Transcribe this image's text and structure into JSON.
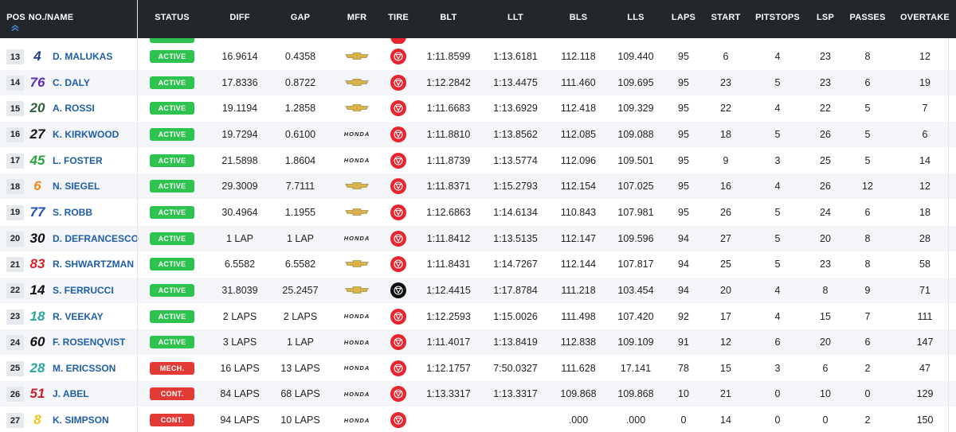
{
  "columns": {
    "pos": "POS",
    "no_name": "NO./NAME",
    "status": "STATUS",
    "diff": "DIFF",
    "gap": "GAP",
    "mfr": "MFR",
    "tire": "TIRE",
    "blt": "BLT",
    "llt": "LLT",
    "bls": "BLS",
    "lls": "LLS",
    "laps": "LAPS",
    "start": "START",
    "pitstops": "PITSTOPS",
    "lsp": "LSP",
    "passes": "PASSES",
    "overtake": "OVERTAKE"
  },
  "sort_icon": "chevron-double-up-icon",
  "colors": {
    "header_bg": "#22272c",
    "active": "#2ec24f",
    "inactive": "#e23b35",
    "tire_red": "#e8252f",
    "tire_black": "#111111",
    "driver": "#1f5ea8"
  },
  "rows": [
    {
      "pos": "13",
      "num": "4",
      "num_color": "#1f3f8c",
      "driver": "D. MALUKAS",
      "status": "ACTIVE",
      "state": "active",
      "diff": "16.9614",
      "gap": "0.4358",
      "mfr": "chevrolet",
      "tire": "red",
      "blt": "1:11.8599",
      "llt": "1:13.6181",
      "bls": "112.118",
      "lls": "109.440",
      "laps": "95",
      "start": "6",
      "pitstops": "4",
      "lsp": "23",
      "passes": "8",
      "overtake": "12"
    },
    {
      "pos": "14",
      "num": "76",
      "num_color": "#5b2bb5",
      "driver": "C. DALY",
      "status": "ACTIVE",
      "state": "active",
      "diff": "17.8336",
      "gap": "0.8722",
      "mfr": "chevrolet",
      "tire": "red",
      "blt": "1:12.2842",
      "llt": "1:13.4475",
      "bls": "111.460",
      "lls": "109.695",
      "laps": "95",
      "start": "23",
      "pitstops": "5",
      "lsp": "23",
      "passes": "6",
      "overtake": "19"
    },
    {
      "pos": "15",
      "num": "20",
      "num_color": "#2f5f3a",
      "driver": "A. ROSSI",
      "status": "ACTIVE",
      "state": "active",
      "diff": "19.1194",
      "gap": "1.2858",
      "mfr": "chevrolet",
      "tire": "red",
      "blt": "1:11.6683",
      "llt": "1:13.6929",
      "bls": "112.418",
      "lls": "109.329",
      "laps": "95",
      "start": "22",
      "pitstops": "4",
      "lsp": "22",
      "passes": "5",
      "overtake": "7"
    },
    {
      "pos": "16",
      "num": "27",
      "num_color": "#111111",
      "driver": "K. KIRKWOOD",
      "status": "ACTIVE",
      "state": "active",
      "diff": "19.7294",
      "gap": "0.6100",
      "mfr": "honda",
      "tire": "red",
      "blt": "1:11.8810",
      "llt": "1:13.8562",
      "bls": "112.085",
      "lls": "109.088",
      "laps": "95",
      "start": "18",
      "pitstops": "5",
      "lsp": "26",
      "passes": "5",
      "overtake": "6"
    },
    {
      "pos": "17",
      "num": "45",
      "num_color": "#2aa53c",
      "driver": "L. FOSTER",
      "status": "ACTIVE",
      "state": "active",
      "diff": "21.5898",
      "gap": "1.8604",
      "mfr": "honda",
      "tire": "red",
      "blt": "1:11.8739",
      "llt": "1:13.5774",
      "bls": "112.096",
      "lls": "109.501",
      "laps": "95",
      "start": "9",
      "pitstops": "3",
      "lsp": "25",
      "passes": "5",
      "overtake": "14"
    },
    {
      "pos": "18",
      "num": "6",
      "num_color": "#f08a1c",
      "driver": "N. SIEGEL",
      "status": "ACTIVE",
      "state": "active",
      "diff": "29.3009",
      "gap": "7.7111",
      "mfr": "chevrolet",
      "tire": "red",
      "blt": "1:11.8371",
      "llt": "1:15.2793",
      "bls": "112.154",
      "lls": "107.025",
      "laps": "95",
      "start": "16",
      "pitstops": "4",
      "lsp": "26",
      "passes": "12",
      "overtake": "12"
    },
    {
      "pos": "19",
      "num": "77",
      "num_color": "#1f4fb5",
      "driver": "S. ROBB",
      "status": "ACTIVE",
      "state": "active",
      "diff": "30.4964",
      "gap": "1.1955",
      "mfr": "chevrolet",
      "tire": "red",
      "blt": "1:12.6863",
      "llt": "1:14.6134",
      "bls": "110.843",
      "lls": "107.981",
      "laps": "95",
      "start": "26",
      "pitstops": "5",
      "lsp": "24",
      "passes": "6",
      "overtake": "18"
    },
    {
      "pos": "20",
      "num": "30",
      "num_color": "#111111",
      "driver": "D. DEFRANCESCO",
      "status": "ACTIVE",
      "state": "active",
      "diff": "1 LAP",
      "gap": "1 LAP",
      "mfr": "honda",
      "tire": "red",
      "blt": "1:11.8412",
      "llt": "1:13.5135",
      "bls": "112.147",
      "lls": "109.596",
      "laps": "94",
      "start": "27",
      "pitstops": "5",
      "lsp": "20",
      "passes": "8",
      "overtake": "28"
    },
    {
      "pos": "21",
      "num": "83",
      "num_color": "#d8232a",
      "driver": "R. SHWARTZMAN",
      "status": "ACTIVE",
      "state": "active",
      "diff": "6.5582",
      "gap": "6.5582",
      "mfr": "chevrolet",
      "tire": "red",
      "blt": "1:11.8431",
      "llt": "1:14.7267",
      "bls": "112.144",
      "lls": "107.817",
      "laps": "94",
      "start": "25",
      "pitstops": "5",
      "lsp": "23",
      "passes": "8",
      "overtake": "58"
    },
    {
      "pos": "22",
      "num": "14",
      "num_color": "#111111",
      "driver": "S. FERRUCCI",
      "status": "ACTIVE",
      "state": "active",
      "diff": "31.8039",
      "gap": "25.2457",
      "mfr": "chevrolet",
      "tire": "black",
      "blt": "1:12.4415",
      "llt": "1:17.8784",
      "bls": "111.218",
      "lls": "103.454",
      "laps": "94",
      "start": "20",
      "pitstops": "4",
      "lsp": "8",
      "passes": "9",
      "overtake": "71"
    },
    {
      "pos": "23",
      "num": "18",
      "num_color": "#2aa8a0",
      "driver": "R. VEEKAY",
      "status": "ACTIVE",
      "state": "active",
      "diff": "2 LAPS",
      "gap": "2 LAPS",
      "mfr": "honda",
      "tire": "red",
      "blt": "1:12.2593",
      "llt": "1:15.0026",
      "bls": "111.498",
      "lls": "107.420",
      "laps": "92",
      "start": "17",
      "pitstops": "4",
      "lsp": "15",
      "passes": "7",
      "overtake": "111"
    },
    {
      "pos": "24",
      "num": "60",
      "num_color": "#111111",
      "driver": "F. ROSENQVIST",
      "status": "ACTIVE",
      "state": "active",
      "diff": "3 LAPS",
      "gap": "1 LAP",
      "mfr": "honda",
      "tire": "red",
      "blt": "1:11.4017",
      "llt": "1:13.8419",
      "bls": "112.838",
      "lls": "109.109",
      "laps": "91",
      "start": "12",
      "pitstops": "6",
      "lsp": "20",
      "passes": "6",
      "overtake": "147"
    },
    {
      "pos": "25",
      "num": "28",
      "num_color": "#2aa8a0",
      "driver": "M. ERICSSON",
      "status": "MECH.",
      "state": "out",
      "diff": "16 LAPS",
      "gap": "13 LAPS",
      "mfr": "honda",
      "tire": "red",
      "blt": "1:12.1757",
      "llt": "7:50.0327",
      "bls": "111.628",
      "lls": "17.141",
      "laps": "78",
      "start": "15",
      "pitstops": "3",
      "lsp": "6",
      "passes": "2",
      "overtake": "47"
    },
    {
      "pos": "26",
      "num": "51",
      "num_color": "#c8202a",
      "driver": "J. ABEL",
      "status": "CONT.",
      "state": "out",
      "diff": "84 LAPS",
      "gap": "68 LAPS",
      "mfr": "honda",
      "tire": "red",
      "blt": "1:13.3317",
      "llt": "1:13.3317",
      "bls": "109.868",
      "lls": "109.868",
      "laps": "10",
      "start": "21",
      "pitstops": "0",
      "lsp": "10",
      "passes": "0",
      "overtake": "129"
    },
    {
      "pos": "27",
      "num": "8",
      "num_color": "#f2c21a",
      "driver": "K. SIMPSON",
      "status": "CONT.",
      "state": "out",
      "diff": "94 LAPS",
      "gap": "10 LAPS",
      "mfr": "honda",
      "tire": "red",
      "blt": "",
      "llt": "",
      "bls": ".000",
      "lls": ".000",
      "laps": "0",
      "start": "14",
      "pitstops": "0",
      "lsp": "0",
      "passes": "2",
      "overtake": "150"
    }
  ],
  "honda_label": "HONDA"
}
